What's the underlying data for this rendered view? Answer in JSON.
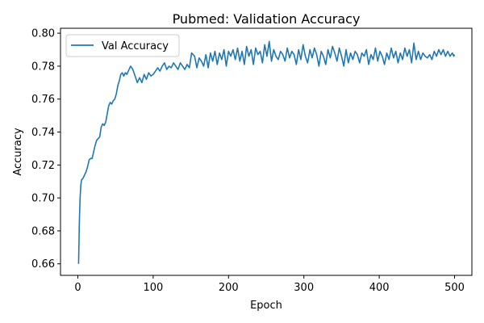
{
  "chart_data": {
    "type": "line",
    "title": "Pubmed: Validation Accuracy",
    "xlabel": "Epoch",
    "ylabel": "Accuracy",
    "xlim": [
      -23,
      523
    ],
    "ylim": [
      0.653,
      0.803
    ],
    "xticks": [
      0,
      100,
      200,
      300,
      400,
      500
    ],
    "xtick_labels": [
      "0",
      "100",
      "200",
      "300",
      "400",
      "500"
    ],
    "yticks": [
      0.66,
      0.68,
      0.7,
      0.72,
      0.74,
      0.76,
      0.78,
      0.8
    ],
    "ytick_labels": [
      "0.66",
      "0.68",
      "0.70",
      "0.72",
      "0.74",
      "0.76",
      "0.78",
      "0.80"
    ],
    "grid": false,
    "legend": {
      "position": "top-left",
      "entries": [
        "Val Accuracy"
      ]
    },
    "series": [
      {
        "name": "Val Accuracy",
        "color": "#1f77b4",
        "points": [
          [
            1,
            0.66
          ],
          [
            2,
            0.685
          ],
          [
            3,
            0.7
          ],
          [
            4,
            0.708
          ],
          [
            5,
            0.711
          ],
          [
            7,
            0.712
          ],
          [
            9,
            0.714
          ],
          [
            11,
            0.716
          ],
          [
            13,
            0.719
          ],
          [
            15,
            0.723
          ],
          [
            17,
            0.724
          ],
          [
            19,
            0.724
          ],
          [
            21,
            0.728
          ],
          [
            23,
            0.732
          ],
          [
            25,
            0.735
          ],
          [
            27,
            0.736
          ],
          [
            29,
            0.737
          ],
          [
            31,
            0.743
          ],
          [
            33,
            0.745
          ],
          [
            35,
            0.744
          ],
          [
            37,
            0.746
          ],
          [
            39,
            0.751
          ],
          [
            41,
            0.756
          ],
          [
            43,
            0.758
          ],
          [
            45,
            0.757
          ],
          [
            47,
            0.759
          ],
          [
            49,
            0.76
          ],
          [
            51,
            0.763
          ],
          [
            53,
            0.768
          ],
          [
            55,
            0.771
          ],
          [
            57,
            0.775
          ],
          [
            59,
            0.776
          ],
          [
            61,
            0.774
          ],
          [
            63,
            0.776
          ],
          [
            65,
            0.775
          ],
          [
            67,
            0.777
          ],
          [
            70,
            0.78
          ],
          [
            73,
            0.778
          ],
          [
            76,
            0.774
          ],
          [
            79,
            0.77
          ],
          [
            82,
            0.773
          ],
          [
            85,
            0.77
          ],
          [
            88,
            0.775
          ],
          [
            91,
            0.772
          ],
          [
            94,
            0.776
          ],
          [
            97,
            0.774
          ],
          [
            100,
            0.775
          ],
          [
            103,
            0.777
          ],
          [
            106,
            0.779
          ],
          [
            109,
            0.777
          ],
          [
            112,
            0.78
          ],
          [
            115,
            0.782
          ],
          [
            118,
            0.778
          ],
          [
            121,
            0.78
          ],
          [
            124,
            0.779
          ],
          [
            127,
            0.782
          ],
          [
            130,
            0.78
          ],
          [
            133,
            0.778
          ],
          [
            136,
            0.782
          ],
          [
            139,
            0.78
          ],
          [
            142,
            0.778
          ],
          [
            145,
            0.781
          ],
          [
            148,
            0.779
          ],
          [
            151,
            0.788
          ],
          [
            155,
            0.786
          ],
          [
            158,
            0.779
          ],
          [
            161,
            0.785
          ],
          [
            164,
            0.783
          ],
          [
            167,
            0.78
          ],
          [
            170,
            0.787
          ],
          [
            173,
            0.779
          ],
          [
            176,
            0.788
          ],
          [
            179,
            0.783
          ],
          [
            182,
            0.789
          ],
          [
            185,
            0.781
          ],
          [
            188,
            0.788
          ],
          [
            191,
            0.784
          ],
          [
            194,
            0.79
          ],
          [
            197,
            0.78
          ],
          [
            200,
            0.789
          ],
          [
            203,
            0.786
          ],
          [
            206,
            0.79
          ],
          [
            209,
            0.784
          ],
          [
            212,
            0.791
          ],
          [
            215,
            0.783
          ],
          [
            218,
            0.789
          ],
          [
            221,
            0.781
          ],
          [
            224,
            0.792
          ],
          [
            227,
            0.786
          ],
          [
            230,
            0.79
          ],
          [
            233,
            0.781
          ],
          [
            236,
            0.791
          ],
          [
            239,
            0.787
          ],
          [
            242,
            0.789
          ],
          [
            245,
            0.782
          ],
          [
            248,
            0.793
          ],
          [
            251,
            0.786
          ],
          [
            254,
            0.795
          ],
          [
            257,
            0.783
          ],
          [
            260,
            0.79
          ],
          [
            263,
            0.786
          ],
          [
            266,
            0.784
          ],
          [
            269,
            0.789
          ],
          [
            272,
            0.787
          ],
          [
            275,
            0.783
          ],
          [
            278,
            0.791
          ],
          [
            281,
            0.785
          ],
          [
            284,
            0.789
          ],
          [
            287,
            0.787
          ],
          [
            290,
            0.781
          ],
          [
            293,
            0.79
          ],
          [
            296,
            0.784
          ],
          [
            299,
            0.793
          ],
          [
            302,
            0.786
          ],
          [
            305,
            0.782
          ],
          [
            308,
            0.79
          ],
          [
            311,
            0.785
          ],
          [
            314,
            0.791
          ],
          [
            317,
            0.787
          ],
          [
            320,
            0.78
          ],
          [
            323,
            0.789
          ],
          [
            326,
            0.786
          ],
          [
            329,
            0.781
          ],
          [
            332,
            0.79
          ],
          [
            335,
            0.785
          ],
          [
            338,
            0.792
          ],
          [
            341,
            0.788
          ],
          [
            344,
            0.783
          ],
          [
            347,
            0.791
          ],
          [
            350,
            0.786
          ],
          [
            353,
            0.78
          ],
          [
            356,
            0.79
          ],
          [
            359,
            0.782
          ],
          [
            362,
            0.788
          ],
          [
            365,
            0.784
          ],
          [
            368,
            0.789
          ],
          [
            371,
            0.787
          ],
          [
            374,
            0.782
          ],
          [
            377,
            0.788
          ],
          [
            380,
            0.786
          ],
          [
            383,
            0.79
          ],
          [
            386,
            0.781
          ],
          [
            389,
            0.787
          ],
          [
            392,
            0.784
          ],
          [
            395,
            0.791
          ],
          [
            398,
            0.783
          ],
          [
            401,
            0.789
          ],
          [
            404,
            0.786
          ],
          [
            407,
            0.781
          ],
          [
            410,
            0.788
          ],
          [
            413,
            0.784
          ],
          [
            416,
            0.791
          ],
          [
            419,
            0.785
          ],
          [
            422,
            0.789
          ],
          [
            425,
            0.782
          ],
          [
            428,
            0.788
          ],
          [
            431,
            0.784
          ],
          [
            434,
            0.791
          ],
          [
            437,
            0.786
          ],
          [
            440,
            0.79
          ],
          [
            443,
            0.782
          ],
          [
            446,
            0.794
          ],
          [
            449,
            0.784
          ],
          [
            452,
            0.789
          ],
          [
            455,
            0.784
          ],
          [
            458,
            0.788
          ],
          [
            461,
            0.786
          ],
          [
            464,
            0.785
          ],
          [
            467,
            0.787
          ],
          [
            470,
            0.784
          ],
          [
            473,
            0.789
          ],
          [
            476,
            0.786
          ],
          [
            479,
            0.79
          ],
          [
            482,
            0.787
          ],
          [
            485,
            0.79
          ],
          [
            488,
            0.786
          ],
          [
            491,
            0.789
          ],
          [
            494,
            0.786
          ],
          [
            497,
            0.788
          ],
          [
            499,
            0.786
          ],
          [
            500,
            0.787
          ]
        ]
      }
    ]
  }
}
